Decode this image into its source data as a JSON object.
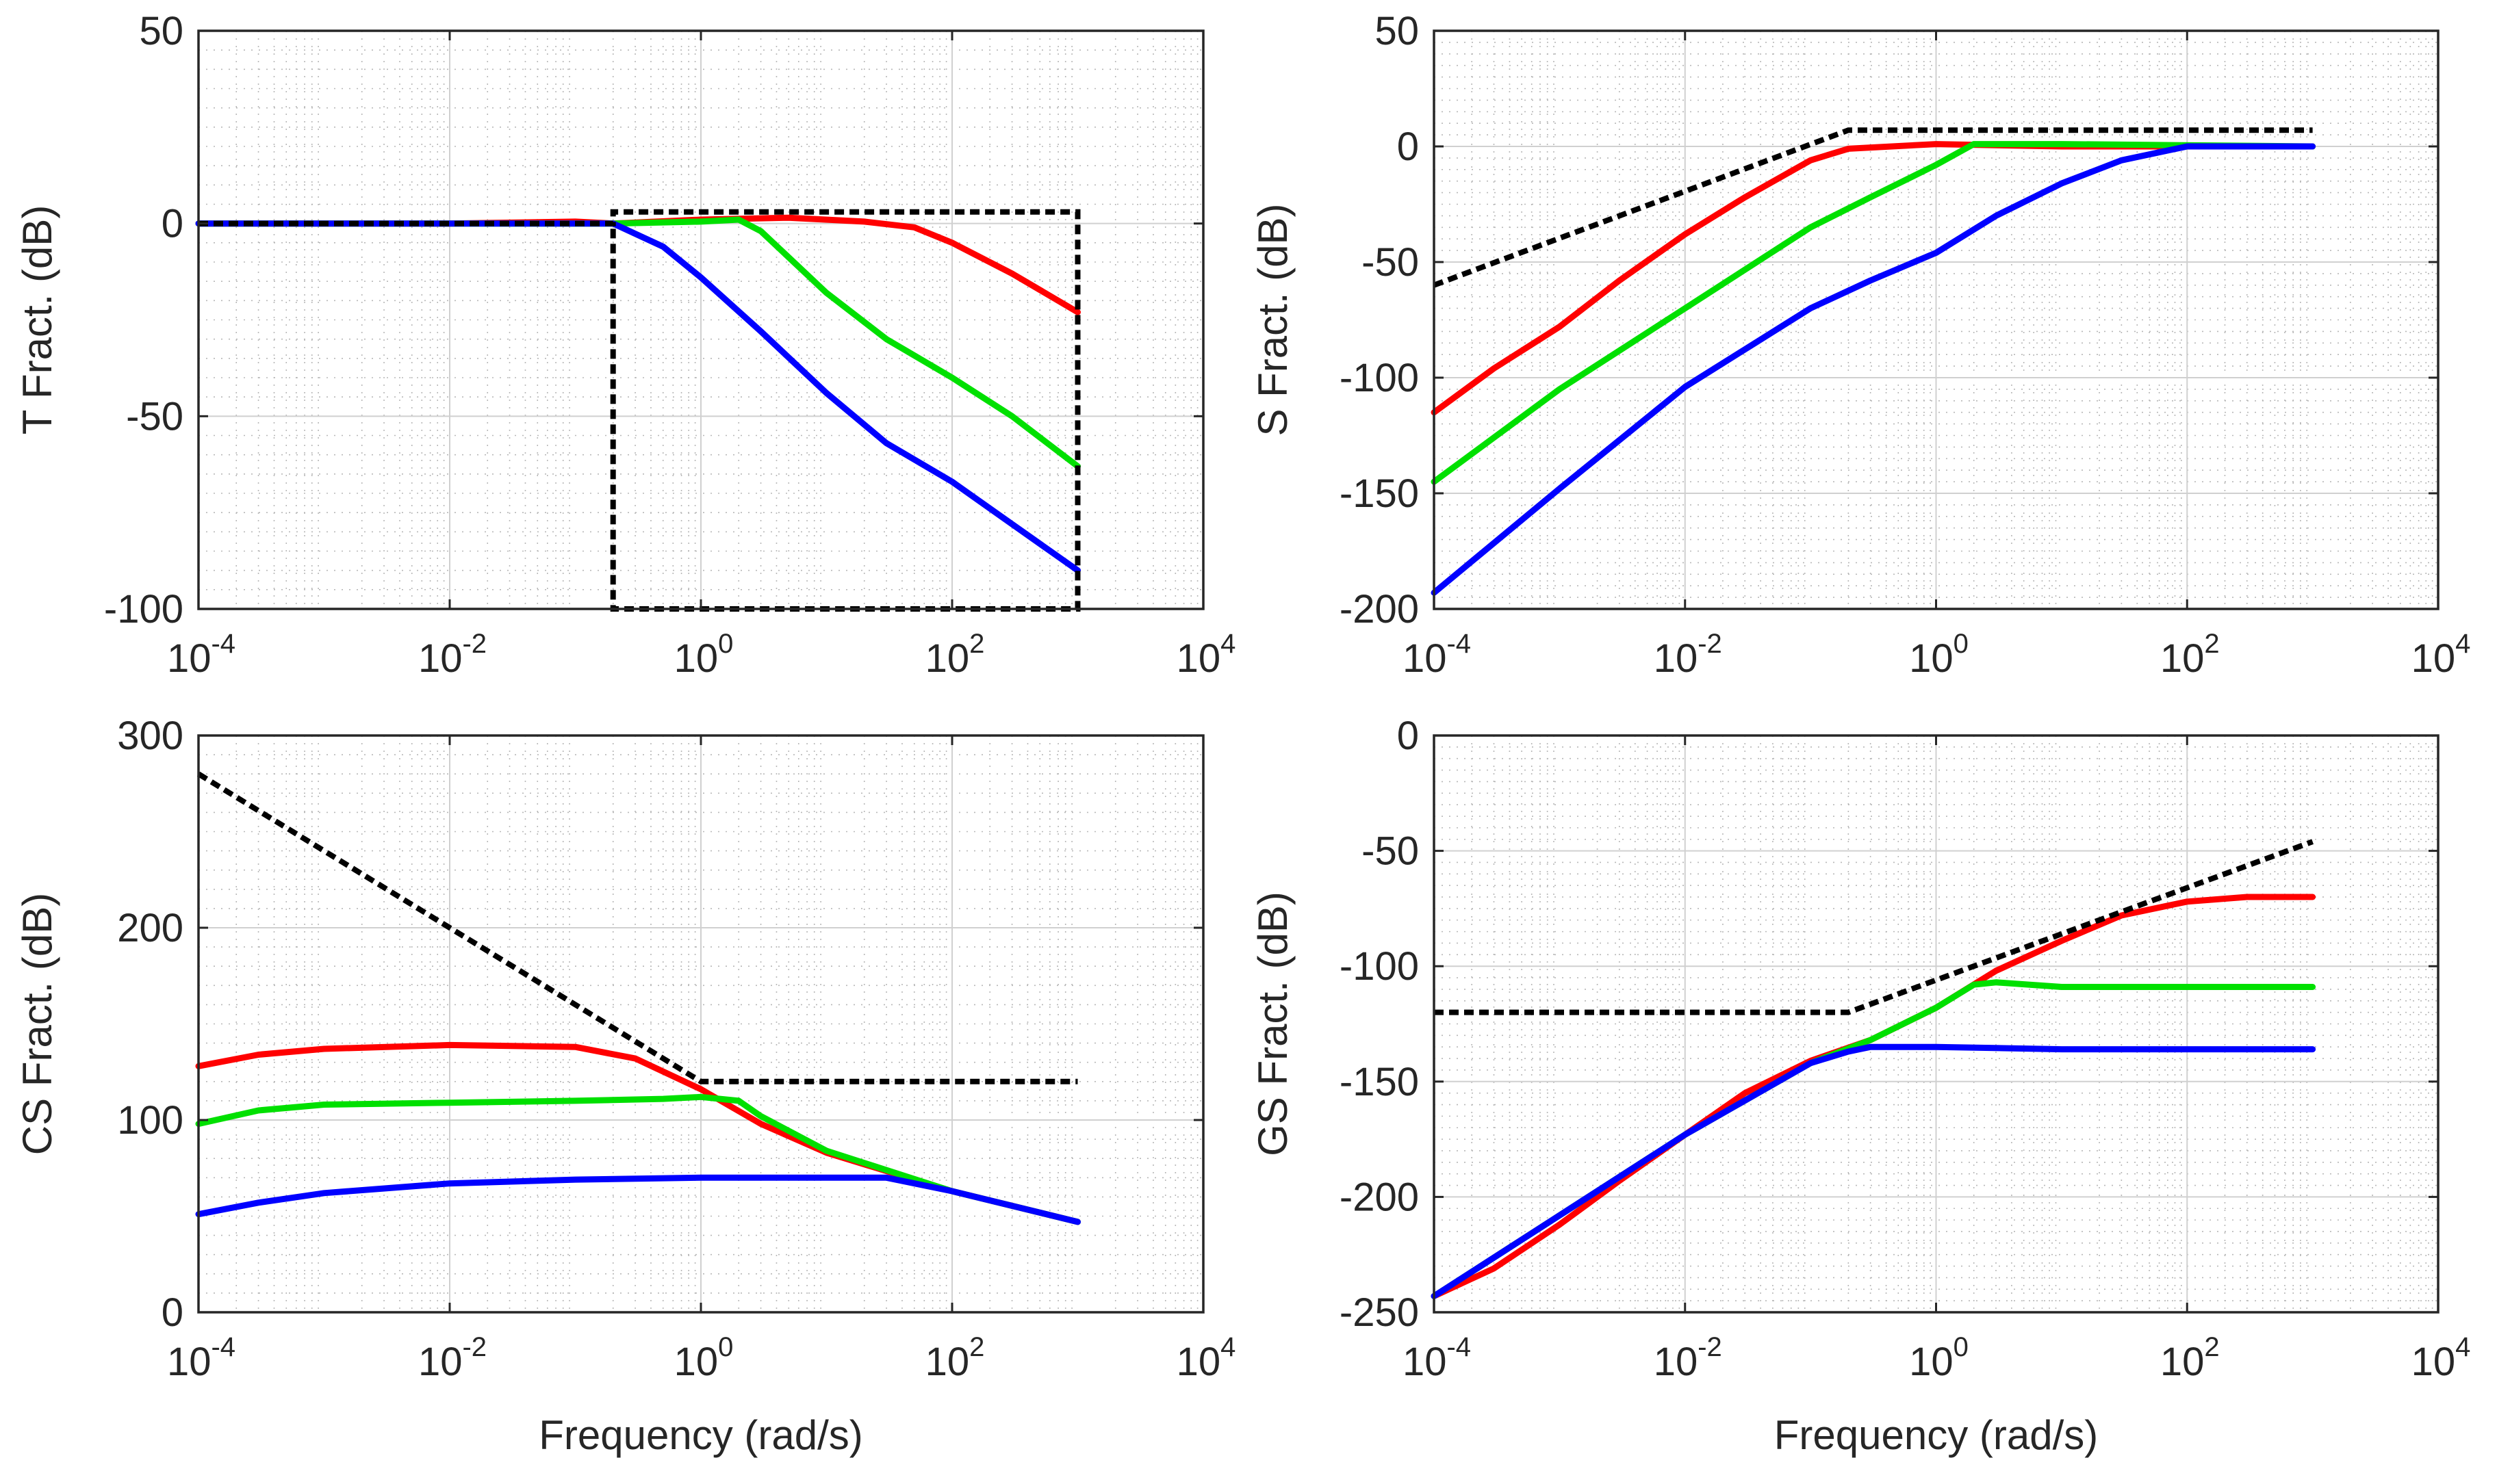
{
  "colors": {
    "red": "#ff0000",
    "green": "#00e000",
    "blue": "#0000ff",
    "bound": "#000000"
  },
  "chart_data": [
    {
      "type": "line",
      "ylabel": "T Fract. (dB)",
      "xlabel": "",
      "xscale": "log",
      "xlim": [
        0.0001,
        10000
      ],
      "ylim": [
        -100,
        50
      ],
      "grid": true,
      "xticks": [
        0.0001,
        0.01,
        1,
        100,
        10000
      ],
      "xtick_base": [
        "10",
        "10",
        "10",
        "10",
        "10"
      ],
      "xtick_exp": [
        "-4",
        "-2",
        "0",
        "2",
        "4"
      ],
      "yticks": [
        -100,
        -50,
        0,
        50
      ],
      "ytick_labels": [
        "-100",
        "-50",
        "0",
        "50"
      ],
      "series": [
        {
          "color": "red",
          "x": [
            0.0001,
            0.01,
            0.1,
            0.2,
            1,
            5,
            20,
            50,
            100,
            300,
            1000
          ],
          "y": [
            0,
            0,
            0.5,
            0,
            1,
            1.5,
            0.5,
            -1,
            -5,
            -13,
            -23
          ]
        },
        {
          "color": "green",
          "x": [
            0.0001,
            0.1,
            0.2,
            1,
            2,
            3,
            10,
            30,
            100,
            300,
            1000
          ],
          "y": [
            0,
            0,
            0,
            0.5,
            1,
            -2,
            -18,
            -30,
            -40,
            -50,
            -63
          ]
        },
        {
          "color": "blue",
          "x": [
            0.0001,
            0.1,
            0.2,
            0.5,
            1,
            3,
            10,
            30,
            100,
            300,
            1000
          ],
          "y": [
            0,
            0,
            0,
            -6,
            -14,
            -28,
            -44,
            -57,
            -67,
            -78,
            -90
          ]
        },
        {
          "color": "bound",
          "dashed": true,
          "x": [
            0.0001,
            0.2,
            0.2,
            0.2,
            1000,
            1000,
            0.2,
            0.2
          ],
          "y": [
            0,
            0,
            3,
            3,
            3,
            -100,
            -100,
            0
          ]
        }
      ]
    },
    {
      "type": "line",
      "ylabel": "S Fract. (dB)",
      "xlabel": "",
      "xscale": "log",
      "xlim": [
        0.0001,
        10000
      ],
      "ylim": [
        -200,
        50
      ],
      "grid": true,
      "xticks": [
        0.0001,
        0.01,
        1,
        100,
        10000
      ],
      "xtick_base": [
        "10",
        "10",
        "10",
        "10",
        "10"
      ],
      "xtick_exp": [
        "-4",
        "-2",
        "0",
        "2",
        "4"
      ],
      "yticks": [
        -200,
        -150,
        -100,
        -50,
        0,
        50
      ],
      "ytick_labels": [
        "-200",
        "-150",
        "-100",
        "-50",
        "0",
        "50"
      ],
      "series": [
        {
          "color": "red",
          "x": [
            0.0001,
            0.0003,
            0.001,
            0.003,
            0.01,
            0.03,
            0.1,
            0.2,
            1,
            10,
            1000
          ],
          "y": [
            -115,
            -96,
            -78,
            -58,
            -38,
            -22,
            -6,
            -1,
            1,
            0,
            0
          ]
        },
        {
          "color": "green",
          "x": [
            0.0001,
            0.001,
            0.01,
            0.1,
            0.3,
            1,
            2,
            10,
            1000
          ],
          "y": [
            -145,
            -105,
            -70,
            -35,
            -22,
            -8,
            1,
            1,
            0
          ]
        },
        {
          "color": "blue",
          "x": [
            0.0001,
            0.001,
            0.01,
            0.1,
            0.3,
            1,
            3,
            10,
            30,
            100,
            1000
          ],
          "y": [
            -193,
            -148,
            -104,
            -70,
            -58,
            -46,
            -30,
            -16,
            -6,
            0,
            0
          ]
        },
        {
          "color": "bound",
          "dashed": true,
          "x": [
            0.0001,
            0.2,
            1000
          ],
          "y": [
            -60,
            7,
            7
          ]
        }
      ]
    },
    {
      "type": "line",
      "ylabel": "CS Fract. (dB)",
      "xlabel": "Frequency (rad/s)",
      "xscale": "log",
      "xlim": [
        0.0001,
        10000
      ],
      "ylim": [
        0,
        300
      ],
      "grid": true,
      "xticks": [
        0.0001,
        0.01,
        1,
        100,
        10000
      ],
      "xtick_base": [
        "10",
        "10",
        "10",
        "10",
        "10"
      ],
      "xtick_exp": [
        "-4",
        "-2",
        "0",
        "2",
        "4"
      ],
      "yticks": [
        0,
        100,
        200,
        300
      ],
      "ytick_labels": [
        "0",
        "100",
        "200",
        "300"
      ],
      "series": [
        {
          "color": "red",
          "x": [
            0.0001,
            0.0003,
            0.001,
            0.01,
            0.1,
            0.3,
            1,
            3,
            10,
            100,
            1000
          ],
          "y": [
            128,
            134,
            137,
            139,
            138,
            132,
            116,
            98,
            83,
            63,
            47
          ]
        },
        {
          "color": "green",
          "x": [
            0.0001,
            0.0003,
            0.001,
            0.01,
            0.1,
            0.5,
            1,
            2,
            3,
            10,
            100,
            1000
          ],
          "y": [
            98,
            105,
            108,
            109,
            110,
            111,
            112,
            110,
            102,
            84,
            63,
            47
          ]
        },
        {
          "color": "blue",
          "x": [
            0.0001,
            0.0003,
            0.001,
            0.01,
            0.1,
            1,
            10,
            30,
            100,
            1000
          ],
          "y": [
            51,
            57,
            62,
            67,
            69,
            70,
            70,
            70,
            63,
            47
          ]
        },
        {
          "color": "bound",
          "dashed": true,
          "x": [
            0.0001,
            1,
            1000
          ],
          "y": [
            280,
            120,
            120
          ]
        }
      ]
    },
    {
      "type": "line",
      "ylabel": "GS Fract. (dB)",
      "xlabel": "Frequency (rad/s)",
      "xscale": "log",
      "xlim": [
        0.0001,
        10000
      ],
      "ylim": [
        -250,
        0
      ],
      "grid": true,
      "xticks": [
        0.0001,
        0.01,
        1,
        100,
        10000
      ],
      "xtick_base": [
        "10",
        "10",
        "10",
        "10",
        "10"
      ],
      "xtick_exp": [
        "-4",
        "-2",
        "0",
        "2",
        "4"
      ],
      "yticks": [
        -250,
        -200,
        -150,
        -100,
        -50,
        0
      ],
      "ytick_labels": [
        "-250",
        "-200",
        "-150",
        "-100",
        "-50",
        "0"
      ],
      "series": [
        {
          "color": "red",
          "x": [
            0.0001,
            0.0003,
            0.001,
            0.003,
            0.01,
            0.03,
            0.1,
            0.3,
            1,
            3,
            10,
            30,
            100,
            300,
            1000
          ],
          "y": [
            -243,
            -231,
            -212,
            -193,
            -173,
            -155,
            -141,
            -132,
            -118,
            -102,
            -89,
            -78,
            -72,
            -70,
            -70
          ]
        },
        {
          "color": "green",
          "x": [
            0.0001,
            0.01,
            0.1,
            0.3,
            1,
            2,
            3,
            10,
            1000
          ],
          "y": [
            -243,
            -173,
            -142,
            -132,
            -118,
            -108,
            -107,
            -109,
            -109
          ]
        },
        {
          "color": "blue",
          "x": [
            0.0001,
            0.01,
            0.1,
            0.2,
            0.3,
            1,
            10,
            1000
          ],
          "y": [
            -243,
            -173,
            -142,
            -137,
            -135,
            -135,
            -136,
            -136
          ]
        },
        {
          "color": "bound",
          "dashed": true,
          "x": [
            0.0001,
            0.2,
            1000
          ],
          "y": [
            -120,
            -120,
            -46
          ]
        }
      ]
    }
  ]
}
